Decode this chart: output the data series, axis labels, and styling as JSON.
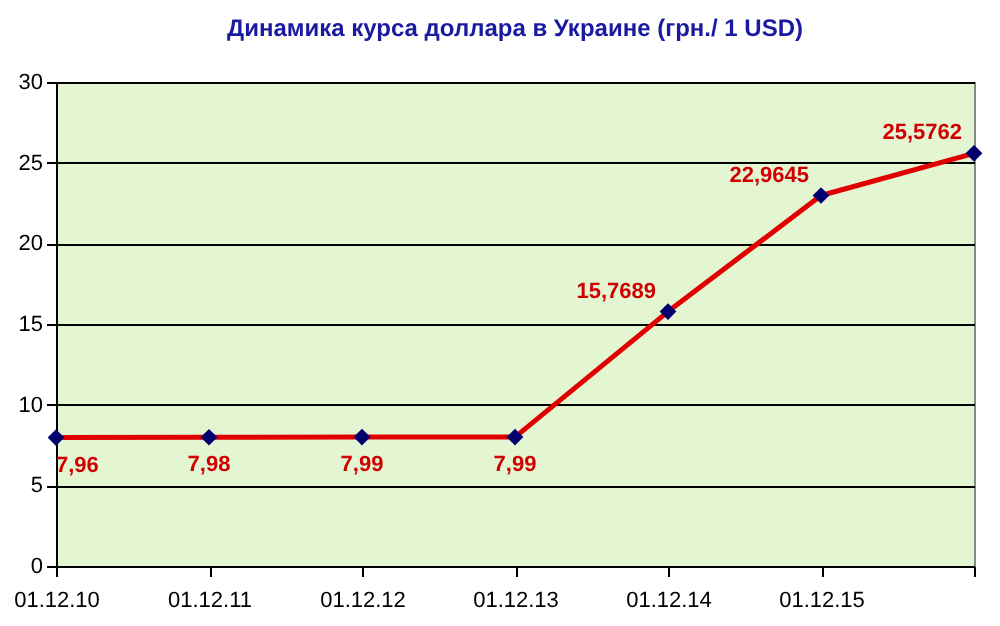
{
  "chart_data": {
    "type": "line",
    "title": "Динамика курса доллара в Украине (грн./ 1 USD)",
    "categories": [
      "01.12.10",
      "01.12.11",
      "01.12.12",
      "01.12.13",
      "01.12.14",
      "01.12.15",
      null
    ],
    "series": [
      {
        "color": "#e00000",
        "values": [
          7.96,
          7.98,
          7.99,
          7.99,
          15.7689,
          22.9645,
          25.5762
        ]
      }
    ],
    "value_labels": [
      "7,96",
      "7,98",
      "7,99",
      "7,99",
      "15,7689",
      "22,9645",
      "25,5762"
    ],
    "ylim": [
      0,
      30
    ],
    "yticks": [
      0,
      5,
      10,
      15,
      20,
      25,
      30
    ],
    "grid": "y",
    "marker": "diamond",
    "line_style": "solid"
  }
}
